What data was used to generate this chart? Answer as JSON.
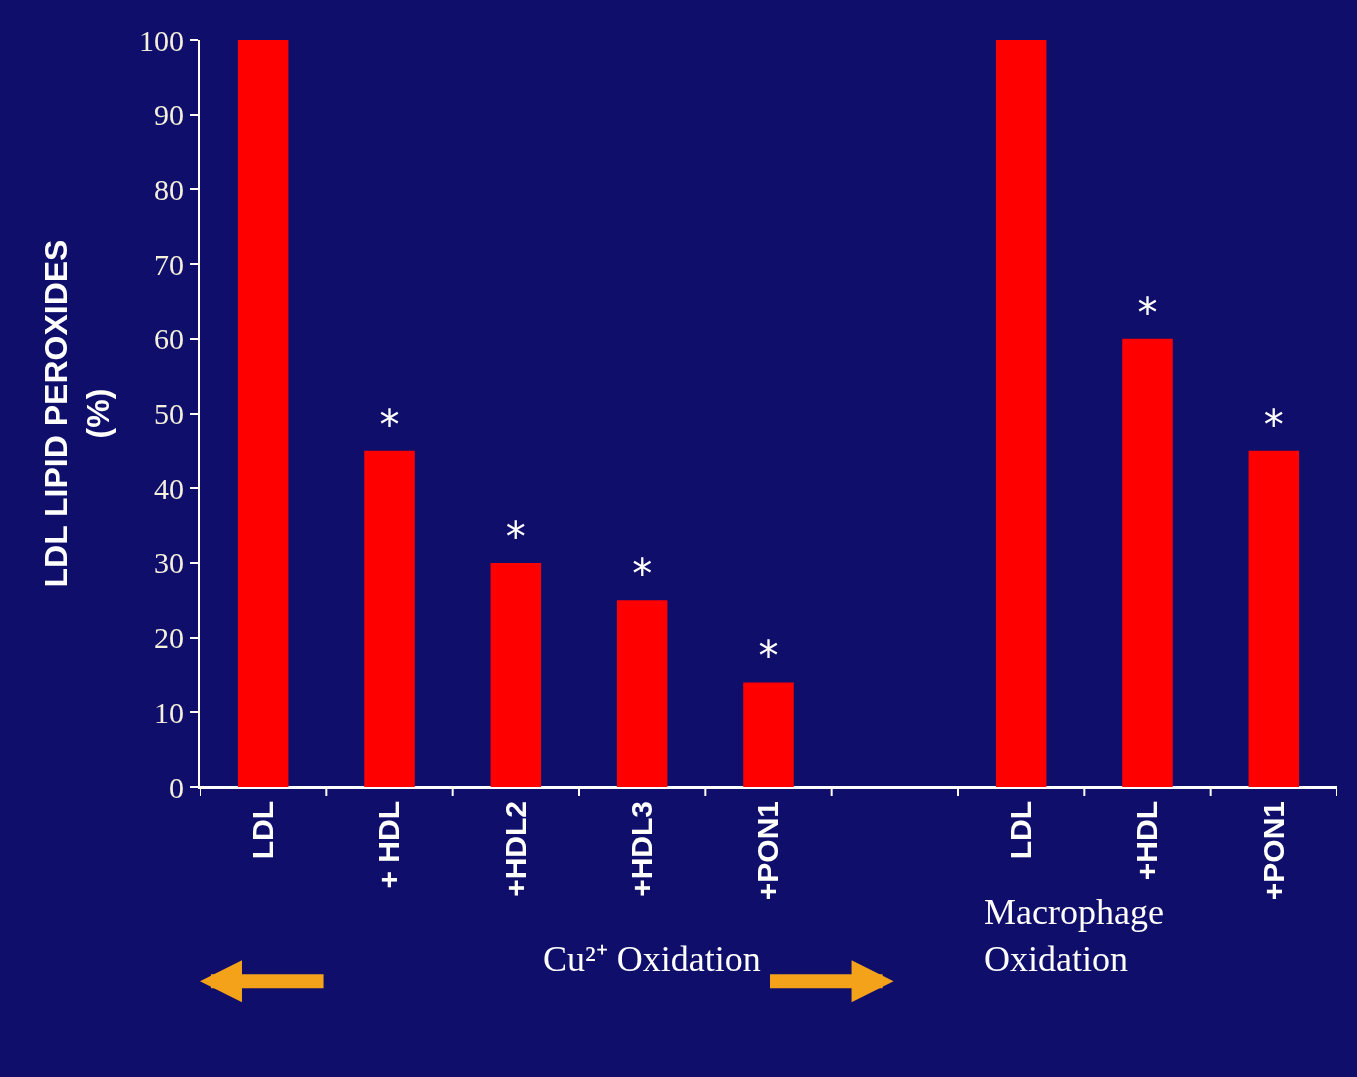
{
  "chart_data": {
    "type": "bar",
    "ylabel": "LDL LIPID PEROXIDES\n(%)",
    "categories": [
      "LDL",
      "+ HDL",
      "+HDL2",
      "+HDL3",
      "+PON1",
      null,
      "LDL",
      "+HDL",
      "+PON1"
    ],
    "values": [
      100,
      45,
      30,
      25,
      14,
      null,
      100,
      60,
      45
    ],
    "value_labels": [
      null,
      "*",
      "*",
      "*",
      "*",
      null,
      null,
      "*",
      "*"
    ],
    "color": "#ff0000",
    "ylim": [
      0,
      100
    ],
    "yticks": [
      0,
      10,
      20,
      30,
      40,
      50,
      60,
      70,
      80,
      90,
      100
    ],
    "grid": false,
    "annotations": [
      "Cu²⁺ Oxidation",
      "Macrophage\nOxidation"
    ]
  }
}
